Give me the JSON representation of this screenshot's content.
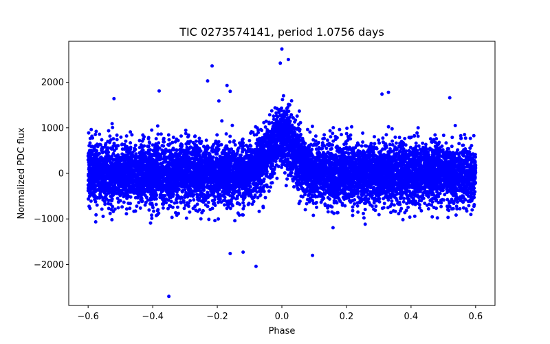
{
  "chart_data": {
    "type": "scatter",
    "title": "TIC 0273574141, period 1.0756 days",
    "xlabel": "Phase",
    "ylabel": "Normalized PDC flux",
    "xlim": [
      -0.66,
      0.66
    ],
    "ylim": [
      -2900,
      2900
    ],
    "xticks": [
      -0.6,
      -0.4,
      -0.2,
      0.0,
      0.2,
      0.4,
      0.6
    ],
    "xtick_labels": [
      "−0.6",
      "−0.4",
      "−0.2",
      "0.0",
      "0.2",
      "0.4",
      "0.6"
    ],
    "yticks": [
      -2000,
      -1000,
      0,
      1000,
      2000
    ],
    "ytick_labels": [
      "−2000",
      "−1000",
      "0",
      "1000",
      "2000"
    ],
    "grid": false,
    "marker_color": "#0000ff",
    "series": [
      {
        "name": "flux",
        "description": "Dense band of points spanning phase -0.6 to 0.6, flux roughly -1000 to 1000, with a bump near phase 0 peaking near 2700",
        "x_range": [
          -0.6,
          0.6
        ],
        "band": [
          -1000,
          1000
        ],
        "peak": {
          "phase": 0.0,
          "max_flux": 2730,
          "center_flux": 800,
          "width": 0.04
        },
        "outliers": [
          {
            "x": -0.35,
            "y": -2700
          },
          {
            "x": -0.216,
            "y": 2360
          },
          {
            "x": -0.23,
            "y": 2030
          },
          {
            "x": -0.17,
            "y": 1930
          },
          {
            "x": -0.16,
            "y": 1800
          },
          {
            "x": -0.38,
            "y": 1810
          },
          {
            "x": -0.195,
            "y": 1590
          },
          {
            "x": -0.08,
            "y": -2040
          },
          {
            "x": -0.16,
            "y": -1760
          },
          {
            "x": -0.12,
            "y": -1730
          },
          {
            "x": 0.095,
            "y": -1800
          },
          {
            "x": 0.33,
            "y": 1780
          },
          {
            "x": 0.31,
            "y": 1740
          },
          {
            "x": 0.52,
            "y": 1660
          },
          {
            "x": -0.52,
            "y": 1640
          },
          {
            "x": 0.0,
            "y": 2730
          },
          {
            "x": 0.02,
            "y": 2500
          },
          {
            "x": -0.005,
            "y": 2420
          }
        ]
      }
    ]
  }
}
